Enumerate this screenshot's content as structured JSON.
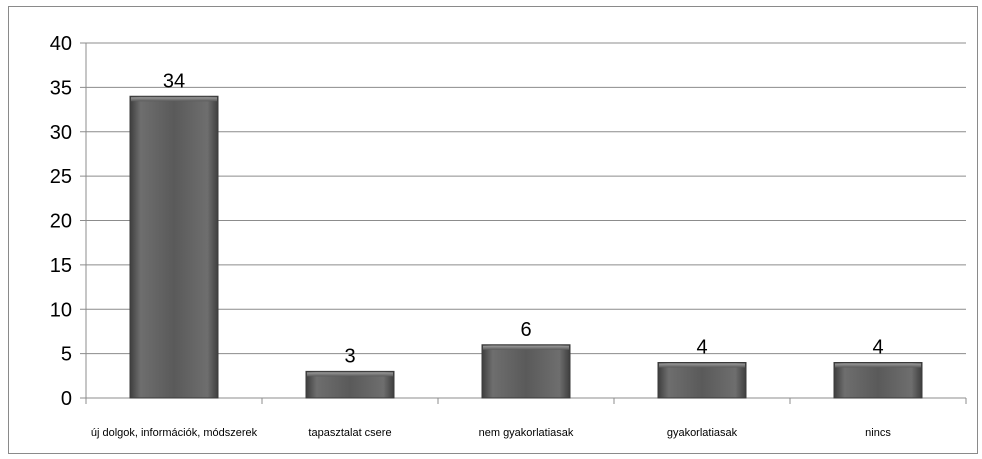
{
  "chart_data": {
    "type": "bar",
    "categories": [
      "új dolgok, információk, módszerek",
      "tapasztalat csere",
      "nem gyakorlatiasak",
      "gyakorlatiasak",
      "nincs"
    ],
    "values": [
      34,
      3,
      6,
      4,
      4
    ],
    "data_labels": [
      "34",
      "3",
      "6",
      "4",
      "4"
    ],
    "yticks": [
      "0",
      "5",
      "10",
      "15",
      "20",
      "25",
      "30",
      "35",
      "40"
    ],
    "ylim": [
      0,
      40
    ],
    "grid": true,
    "legend": "none",
    "colors": {
      "bar": "#5a5a5a",
      "bar_light": "#8a8a8a",
      "grid": "#8c8c8c"
    }
  }
}
